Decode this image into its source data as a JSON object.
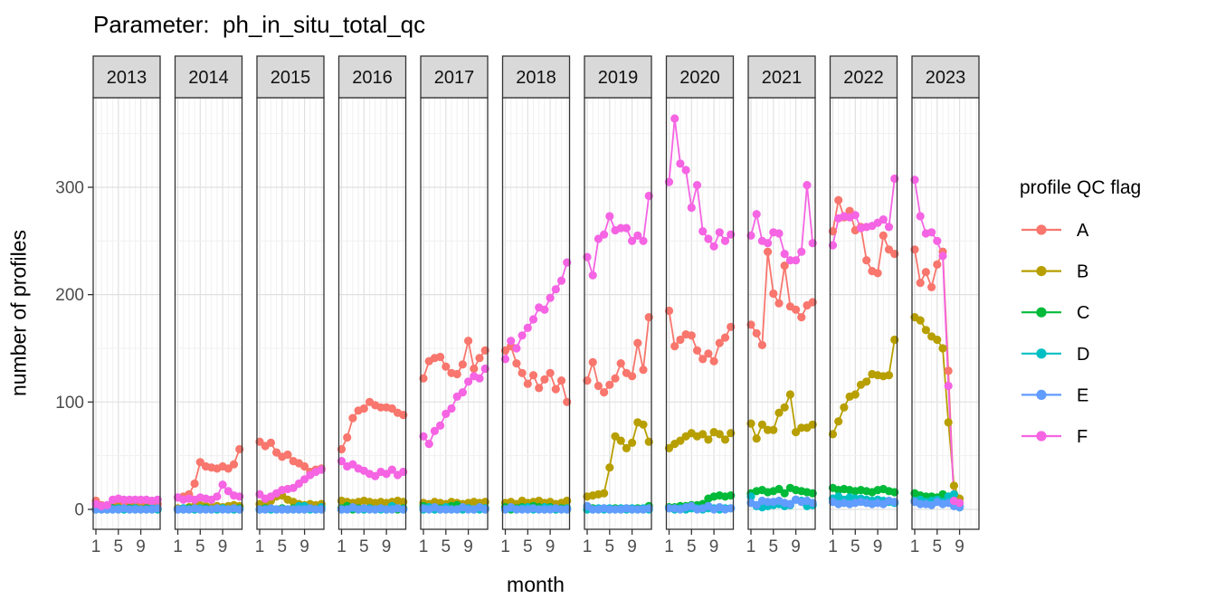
{
  "chart_data": {
    "type": "line",
    "title": "Parameter:  ph_in_situ_total_qc",
    "xlabel": "month",
    "ylabel": "number of profiles",
    "legend_title": "profile QC flag",
    "legend_position": "right",
    "facet_variable": "year",
    "facets": [
      "2013",
      "2014",
      "2015",
      "2016",
      "2017",
      "2018",
      "2019",
      "2020",
      "2021",
      "2022",
      "2023"
    ],
    "x_months": [
      1,
      2,
      3,
      4,
      5,
      6,
      7,
      8,
      9,
      10,
      11,
      12
    ],
    "xticks": [
      1,
      5,
      9
    ],
    "yticks": [
      0,
      100,
      200,
      300
    ],
    "yminor": [
      50,
      150,
      250,
      350
    ],
    "ylim": [
      -18,
      382
    ],
    "grid": true,
    "panel_background": "#ffffff",
    "strip_fill": "#d9d9d9",
    "border_color": "#333333",
    "grid_major_color": "#e0e0e0",
    "grid_minor_color": "#f0f0f0",
    "series": [
      {
        "name": "A",
        "color": "#F8766D",
        "values_by_facet": {
          "2013": [
            8,
            4,
            3,
            6,
            7,
            5,
            5,
            6,
            5,
            6,
            5,
            5
          ],
          "2014": [
            11,
            12,
            14,
            24,
            44,
            40,
            39,
            38,
            40,
            38,
            42,
            56
          ],
          "2015": [
            63,
            59,
            62,
            53,
            49,
            51,
            45,
            43,
            40,
            35,
            37,
            38
          ],
          "2016": [
            56,
            67,
            85,
            92,
            94,
            100,
            97,
            95,
            95,
            94,
            90,
            88
          ],
          "2017": [
            122,
            138,
            141,
            142,
            133,
            127,
            126,
            135,
            157,
            131,
            141,
            148
          ],
          "2018": [
            148,
            152,
            136,
            127,
            117,
            125,
            113,
            121,
            127,
            112,
            120,
            100
          ],
          "2019": [
            120,
            137,
            115,
            109,
            116,
            122,
            136,
            127,
            124,
            155,
            130,
            179
          ],
          "2020": [
            185,
            152,
            158,
            163,
            162,
            148,
            140,
            145,
            138,
            155,
            160,
            170
          ],
          "2021": [
            172,
            164,
            153,
            240,
            201,
            192,
            227,
            189,
            186,
            179,
            190,
            193
          ],
          "2022": [
            259,
            288,
            272,
            278,
            260,
            263,
            232,
            222,
            220,
            255,
            242,
            238
          ],
          "2023": [
            242,
            211,
            221,
            207,
            228,
            240,
            129,
            8,
            6
          ]
        }
      },
      {
        "name": "B",
        "color": "#B79F00",
        "values_by_facet": {
          "2013": [
            1,
            1,
            1,
            1,
            2,
            1,
            1,
            2,
            1,
            1,
            1,
            1
          ],
          "2014": [
            1,
            1,
            2,
            3,
            4,
            3,
            2,
            3,
            2,
            3,
            4,
            3
          ],
          "2015": [
            5,
            4,
            8,
            12,
            13,
            9,
            7,
            5,
            4,
            5,
            4,
            5
          ],
          "2016": [
            8,
            7,
            6,
            7,
            8,
            7,
            6,
            7,
            6,
            7,
            8,
            7
          ],
          "2017": [
            6,
            5,
            7,
            6,
            5,
            7,
            6,
            5,
            6,
            7,
            6,
            7
          ],
          "2018": [
            6,
            7,
            5,
            8,
            6,
            7,
            8,
            6,
            7,
            5,
            6,
            8
          ],
          "2019": [
            12,
            13,
            14,
            15,
            39,
            68,
            64,
            57,
            62,
            81,
            79,
            63
          ],
          "2020": [
            57,
            61,
            64,
            68,
            71,
            68,
            70,
            65,
            72,
            70,
            65,
            71
          ],
          "2021": [
            80,
            66,
            79,
            74,
            74,
            90,
            95,
            107,
            72,
            76,
            76,
            79
          ],
          "2022": [
            70,
            82,
            95,
            105,
            107,
            116,
            119,
            126,
            125,
            124,
            125,
            158
          ],
          "2023": [
            179,
            176,
            167,
            161,
            158,
            150,
            81,
            22,
            10
          ]
        }
      },
      {
        "name": "C",
        "color": "#00BA38",
        "values_by_facet": {
          "2013": [
            0,
            0,
            0,
            1,
            0,
            0,
            1,
            0,
            0,
            1,
            0,
            0
          ],
          "2014": [
            0,
            0,
            1,
            0,
            0,
            1,
            0,
            0,
            1,
            0,
            0,
            1
          ],
          "2015": [
            0,
            1,
            0,
            0,
            1,
            0,
            1,
            0,
            0,
            1,
            0,
            0
          ],
          "2016": [
            1,
            3,
            0,
            1,
            0,
            1,
            0,
            1,
            0,
            1,
            0,
            1
          ],
          "2017": [
            3,
            1,
            0,
            1,
            0,
            3,
            4,
            0,
            1,
            0,
            1,
            0
          ],
          "2018": [
            2,
            0,
            1,
            2,
            2,
            3,
            2,
            0,
            2,
            0,
            1,
            0
          ],
          "2019": [
            0,
            1,
            0,
            1,
            0,
            1,
            0,
            1,
            0,
            1,
            0,
            3
          ],
          "2020": [
            2,
            2,
            3,
            3,
            4,
            4,
            5,
            10,
            12,
            13,
            12,
            13
          ],
          "2021": [
            15,
            17,
            18,
            16,
            17,
            19,
            15,
            20,
            18,
            17,
            16,
            15
          ],
          "2022": [
            20,
            18,
            19,
            18,
            17,
            18,
            17,
            16,
            18,
            19,
            17,
            16
          ],
          "2023": [
            15,
            13,
            12,
            12,
            11,
            14,
            12,
            8,
            2
          ]
        }
      },
      {
        "name": "D",
        "color": "#00BFC4",
        "values_by_facet": {
          "2013": [
            0,
            0,
            0,
            0,
            1,
            0,
            0,
            1,
            0,
            0,
            1,
            0
          ],
          "2014": [
            0,
            1,
            0,
            0,
            1,
            0,
            0,
            0,
            1,
            0,
            0,
            0
          ],
          "2015": [
            0,
            0,
            0,
            0,
            0,
            0,
            0,
            3,
            3,
            0,
            0,
            2
          ],
          "2016": [
            0,
            0,
            1,
            0,
            0,
            1,
            0,
            0,
            0,
            3,
            1,
            0
          ],
          "2017": [
            0,
            2,
            0,
            0,
            2,
            0,
            0,
            0,
            1,
            0,
            0,
            1
          ],
          "2018": [
            0,
            1,
            0,
            1,
            2,
            0,
            0,
            2,
            1,
            0,
            0,
            1
          ],
          "2019": [
            0,
            0,
            1,
            0,
            1,
            0,
            1,
            0,
            1,
            0,
            1,
            0
          ],
          "2020": [
            1,
            0,
            1,
            0,
            1,
            1,
            0,
            1,
            1,
            0,
            1,
            1
          ],
          "2021": [
            12,
            3,
            2,
            3,
            4,
            5,
            3,
            4,
            9,
            8,
            3,
            4
          ],
          "2022": [
            10,
            12,
            9,
            11,
            10,
            10,
            9,
            8,
            9,
            8,
            7,
            6
          ],
          "2023": [
            8,
            9,
            7,
            8,
            9,
            7,
            12,
            14,
            3
          ]
        }
      },
      {
        "name": "E",
        "color": "#619CFF",
        "values_by_facet": {
          "2013": [
            0,
            0,
            0,
            0,
            0,
            1,
            0,
            0,
            0,
            0,
            0,
            1
          ],
          "2014": [
            0,
            0,
            0,
            1,
            0,
            0,
            0,
            1,
            0,
            0,
            1,
            0
          ],
          "2015": [
            0,
            0,
            1,
            0,
            0,
            0,
            0,
            0,
            0,
            1,
            0,
            0
          ],
          "2016": [
            0,
            0,
            2,
            0,
            1,
            0,
            0,
            1,
            0,
            0,
            1,
            0
          ],
          "2017": [
            1,
            0,
            2,
            0,
            0,
            0,
            0,
            2,
            0,
            0,
            2,
            0
          ],
          "2018": [
            0,
            2,
            0,
            0,
            0,
            1,
            0,
            0,
            0,
            1,
            0,
            0
          ],
          "2019": [
            3,
            0,
            0,
            1,
            0,
            0,
            0,
            1,
            0,
            0,
            0,
            1
          ],
          "2020": [
            1,
            1,
            0,
            2,
            3,
            0,
            1,
            3,
            0,
            2,
            0,
            1
          ],
          "2021": [
            6,
            4,
            8,
            7,
            7,
            8,
            6,
            5,
            9,
            7,
            8,
            6
          ],
          "2022": [
            7,
            5,
            6,
            5,
            6,
            7,
            6,
            5,
            6,
            5,
            8,
            7
          ],
          "2023": [
            7,
            5,
            5,
            4,
            7,
            5,
            6,
            3,
            2
          ]
        }
      },
      {
        "name": "F",
        "color": "#F564E3",
        "values_by_facet": {
          "2013": [
            5,
            3,
            4,
            9,
            10,
            9,
            9,
            9,
            9,
            9,
            8,
            9
          ],
          "2014": [
            11,
            9,
            10,
            9,
            11,
            10,
            9,
            12,
            23,
            17,
            13,
            12
          ],
          "2015": [
            14,
            10,
            12,
            15,
            18,
            19,
            20,
            24,
            28,
            32,
            35,
            37
          ],
          "2016": [
            45,
            40,
            42,
            38,
            36,
            33,
            31,
            35,
            33,
            37,
            32,
            35
          ],
          "2017": [
            68,
            61,
            73,
            78,
            89,
            94,
            105,
            109,
            119,
            124,
            122,
            131
          ],
          "2018": [
            140,
            157,
            150,
            162,
            169,
            177,
            188,
            186,
            197,
            205,
            213,
            230
          ],
          "2019": [
            235,
            218,
            252,
            256,
            273,
            260,
            262,
            262,
            250,
            255,
            250,
            292
          ],
          "2020": [
            305,
            364,
            322,
            316,
            281,
            302,
            259,
            252,
            245,
            258,
            250,
            256
          ],
          "2021": [
            255,
            275,
            250,
            248,
            258,
            257,
            238,
            232,
            232,
            240,
            302,
            248
          ],
          "2022": [
            246,
            271,
            273,
            272,
            274,
            262,
            263,
            264,
            267,
            270,
            263,
            308
          ],
          "2023": [
            307,
            273,
            257,
            258,
            250,
            236,
            115,
            8,
            6
          ]
        }
      }
    ]
  }
}
